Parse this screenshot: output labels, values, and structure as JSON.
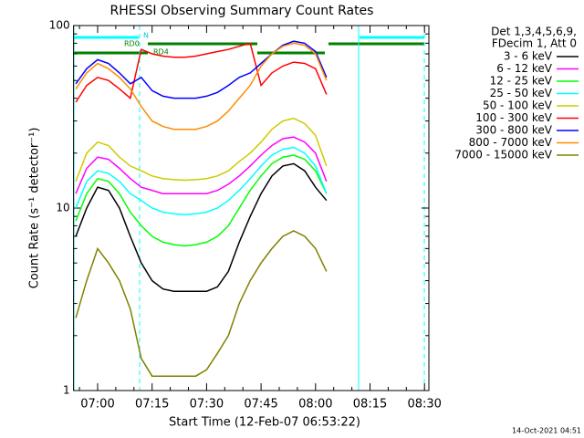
{
  "chart_data": {
    "type": "line",
    "title": "RHESSI Observing Summary Count Rates",
    "x_label": "Start Time (12-Feb-07 06:53:22)",
    "y_label": "Count Rate (s⁻¹ detector⁻¹)",
    "legend_header": [
      "Det 1,3,4,5,6,9,",
      "FDecim 1, Att 0"
    ],
    "annotations": [
      "RD0",
      "RD4",
      "N"
    ],
    "footer": "14-Oct-2021 04:51",
    "log_y": true,
    "legend": "outside-right",
    "xlim": [
      413.37,
      511.2
    ],
    "xticks": [
      {
        "value": 420,
        "label": "07:00"
      },
      {
        "value": 435,
        "label": "07:15"
      },
      {
        "value": 450,
        "label": "07:30"
      },
      {
        "value": 465,
        "label": "07:45"
      },
      {
        "value": 480,
        "label": "08:00"
      },
      {
        "value": 495,
        "label": "08:15"
      },
      {
        "value": 510,
        "label": "08:30"
      }
    ],
    "x_minor_ticks": [
      415,
      425,
      430,
      440,
      445,
      455,
      460,
      470,
      475,
      485,
      490,
      500,
      505
    ],
    "ylim": [
      1,
      100
    ],
    "yticks": [
      1,
      10,
      100
    ],
    "y_minor_ticks": [
      2,
      3,
      4,
      5,
      6,
      7,
      8,
      9,
      20,
      30,
      40,
      50,
      60,
      70,
      80,
      90
    ],
    "x": [
      414,
      417,
      420,
      423,
      426,
      429,
      432,
      435,
      438,
      441,
      444,
      447,
      450,
      453,
      456,
      459,
      462,
      465,
      468,
      471,
      474,
      477,
      480,
      483
    ],
    "series": [
      {
        "name": "3 - 6 keV",
        "color": "#000000",
        "values": [
          7,
          10,
          13,
          12.5,
          10,
          7,
          5,
          4,
          3.6,
          3.5,
          3.5,
          3.5,
          3.5,
          3.7,
          4.5,
          6.5,
          9,
          12,
          15,
          17,
          17.5,
          16,
          13,
          11
        ]
      },
      {
        "name": "6 - 12 keV",
        "color": "#ff00ff",
        "values": [
          12,
          16.5,
          19,
          18.5,
          16.5,
          14.5,
          13,
          12.5,
          12,
          12,
          12,
          12,
          12,
          12.5,
          13.5,
          15,
          17,
          19.5,
          22,
          24,
          24.5,
          23,
          20,
          14
        ]
      },
      {
        "name": "12 - 25 keV",
        "color": "#00ff00",
        "values": [
          8.5,
          12,
          14.5,
          14,
          12,
          9.5,
          8,
          7,
          6.5,
          6.3,
          6.2,
          6.3,
          6.5,
          7,
          8,
          10,
          12.5,
          15,
          17.5,
          19,
          19.5,
          18.5,
          16,
          12
        ]
      },
      {
        "name": "25 - 50 keV",
        "color": "#00ffff",
        "values": [
          10,
          14,
          16,
          15.5,
          14,
          12,
          11,
          10,
          9.5,
          9.3,
          9.2,
          9.3,
          9.5,
          10,
          11,
          12.5,
          14.5,
          17,
          19.5,
          21,
          21.5,
          20,
          17,
          12
        ]
      },
      {
        "name": "50 - 100 keV",
        "color": "#cccc00",
        "values": [
          14,
          20,
          23,
          22,
          19,
          17,
          16,
          15,
          14.5,
          14.3,
          14.2,
          14.3,
          14.5,
          15,
          16,
          18,
          20,
          23,
          27,
          30,
          31,
          29,
          25,
          17
        ]
      },
      {
        "name": "100 - 300 keV",
        "color": "#ff0000",
        "values": [
          38,
          47,
          52,
          50,
          45,
          40,
          74,
          70,
          68,
          67,
          67,
          68,
          70,
          72,
          74,
          77,
          80,
          47,
          55,
          60,
          63,
          62,
          58,
          42
        ]
      },
      {
        "name": "300 - 800 keV",
        "color": "#0000ff",
        "values": [
          48,
          58,
          65,
          62,
          55,
          48,
          52,
          44,
          41,
          40,
          40,
          40,
          41,
          43,
          47,
          52,
          55,
          62,
          70,
          78,
          82,
          80,
          72,
          52
        ]
      },
      {
        "name": "800 - 7000 keV",
        "color": "#ff8c00",
        "values": [
          45,
          55,
          62,
          58,
          52,
          45,
          36,
          30,
          28,
          27,
          27,
          27,
          28,
          30,
          34,
          40,
          47,
          60,
          70,
          77,
          80,
          78,
          70,
          50
        ]
      },
      {
        "name": "7000 - 15000 keV",
        "color": "#808000",
        "values": [
          2.5,
          4,
          6,
          5,
          4,
          2.8,
          1.5,
          1.2,
          1.2,
          1.2,
          1.2,
          1.2,
          1.3,
          1.6,
          2,
          3,
          4,
          5,
          6,
          7,
          7.5,
          7,
          6,
          4.5
        ]
      }
    ]
  }
}
